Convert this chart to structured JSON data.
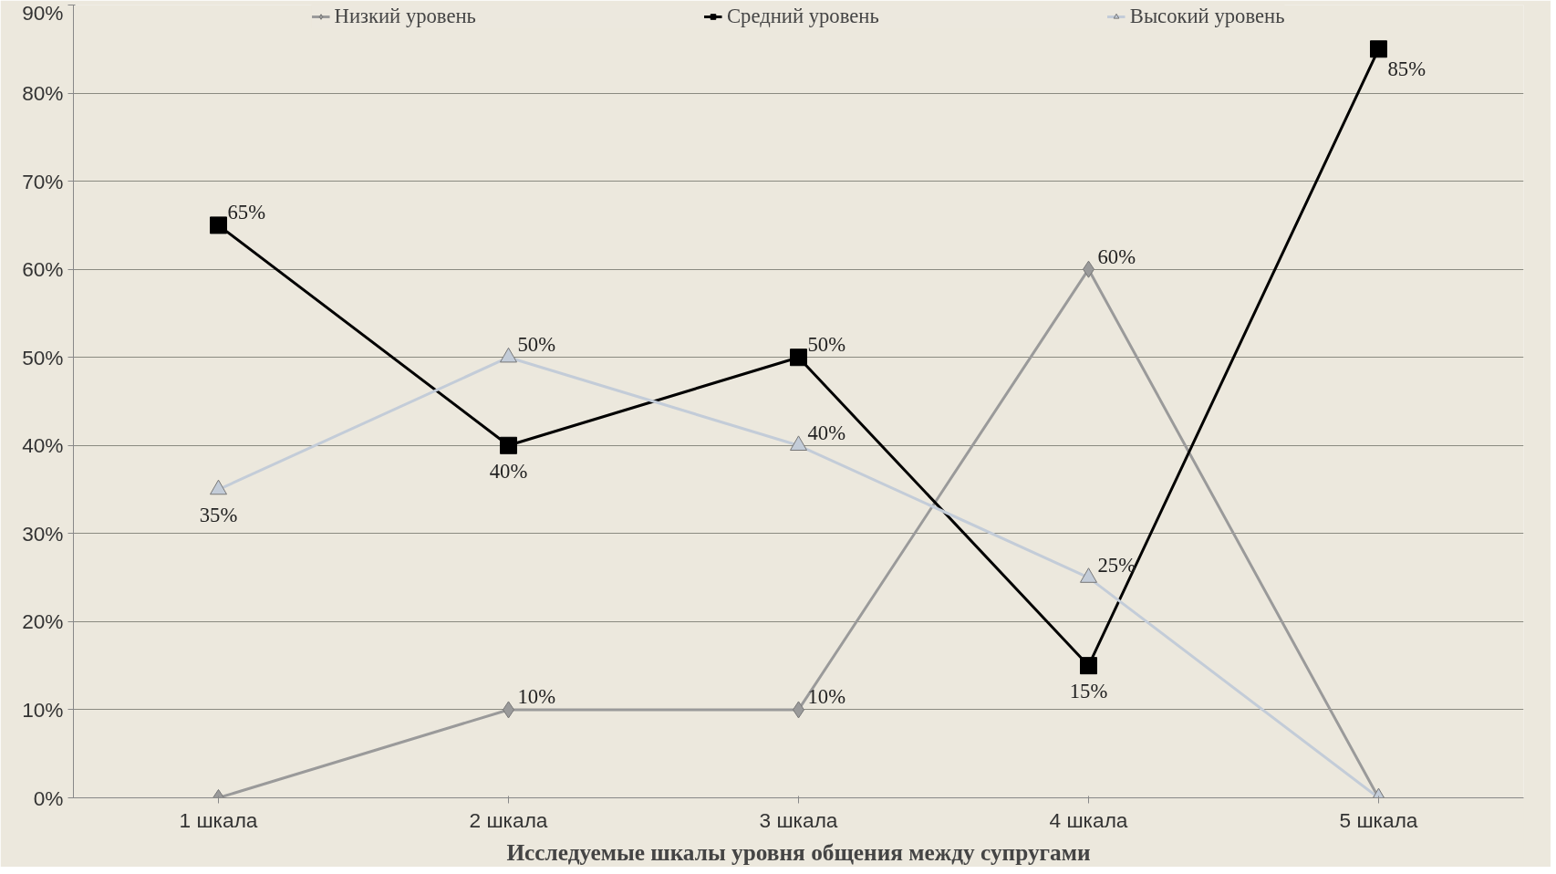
{
  "chart_data": {
    "type": "line",
    "xlabel": "Исследуемые шкалы уровня общения между супругами",
    "categories": [
      "1 шкала",
      "2 шкала",
      "3 шкала",
      "4 шкала",
      "5 шкала"
    ],
    "series": [
      {
        "name": "Низкий уровень",
        "color": "#9a9a9a",
        "marker": "diamond",
        "values": [
          0,
          10,
          10,
          60,
          0
        ],
        "value_labels": [
          null,
          "10%",
          "10%",
          "60%",
          null
        ]
      },
      {
        "name": "Средний уровень",
        "color": "#000000",
        "marker": "square",
        "values": [
          65,
          40,
          50,
          15,
          85
        ],
        "value_labels": [
          "65%",
          "40%",
          "50%",
          "15%",
          "85%"
        ]
      },
      {
        "name": "Высокий уровень",
        "color": "#c3ccd8",
        "marker": "triangle",
        "values": [
          35,
          50,
          40,
          25,
          0
        ],
        "value_labels": [
          "35%",
          "50%",
          "40%",
          "25%",
          null
        ]
      }
    ],
    "ylim": [
      0,
      90
    ],
    "yticks": [
      {
        "value": 0,
        "label": "0%"
      },
      {
        "value": 10,
        "label": "10%"
      },
      {
        "value": 20,
        "label": "20%"
      },
      {
        "value": 30,
        "label": "30%"
      },
      {
        "value": 40,
        "label": "40%"
      },
      {
        "value": 50,
        "label": "50%"
      },
      {
        "value": 60,
        "label": "60%"
      },
      {
        "value": 70,
        "label": "70%"
      },
      {
        "value": 80,
        "label": "80%"
      },
      {
        "value": 90,
        "label": "90%"
      }
    ],
    "grid": "y",
    "legend": "top"
  }
}
